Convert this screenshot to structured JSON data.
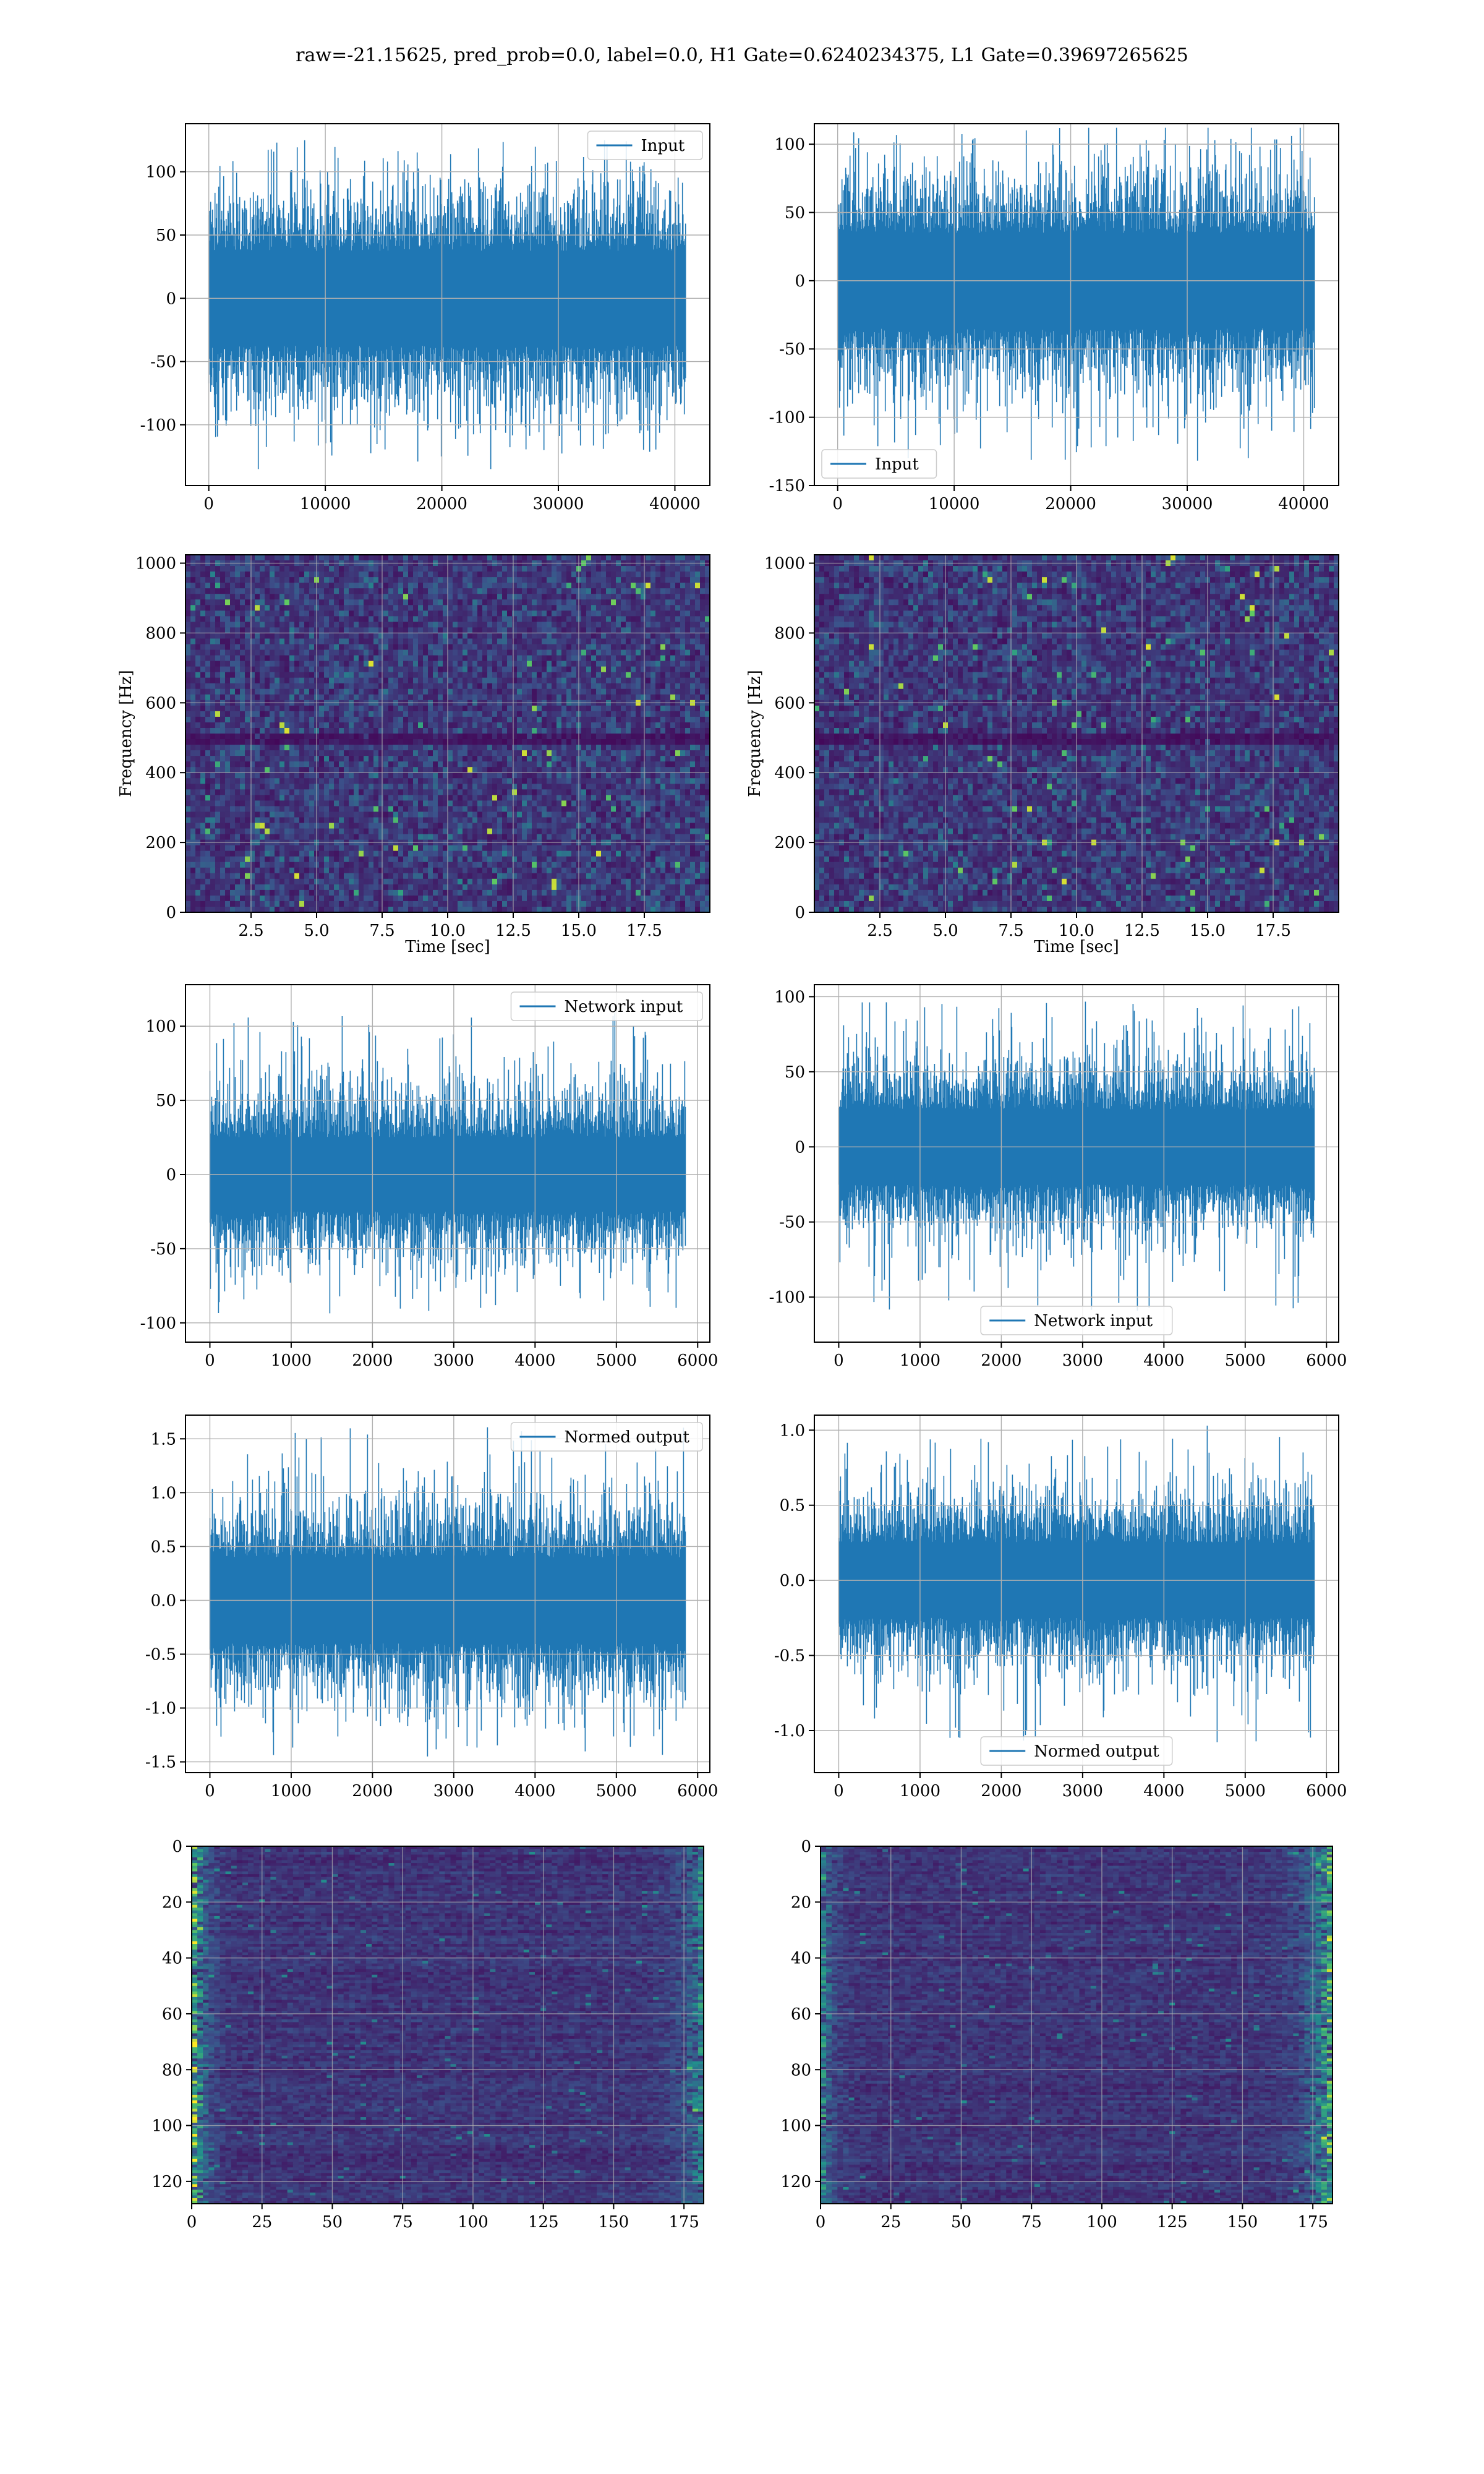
{
  "figure": {
    "title": "raw=-21.15625, pred_prob=0.0, label=0.0, H1 Gate=0.6240234375, L1 Gate=0.39697265625"
  },
  "colors": {
    "line": "#1f77b4",
    "grid": "#b0b0b0",
    "heatmap_background": "#3b0f6f",
    "viridis": [
      "#440154",
      "#3b528b",
      "#21918c",
      "#5ec962",
      "#fde725"
    ]
  },
  "chart_data": [
    {
      "id": "input-h1",
      "type": "line",
      "title": "",
      "xlabel": "",
      "ylabel": "",
      "series": [
        {
          "name": "Input",
          "x_range": [
            0,
            40960
          ],
          "envelope_typical": [
            -60,
            75
          ],
          "spike_range": [
            -135,
            125
          ]
        }
      ],
      "xlim": [
        -2000,
        43000
      ],
      "ylim": [
        -148,
        138
      ],
      "xticks": [
        0,
        10000,
        20000,
        30000,
        40000
      ],
      "yticks": [
        -100,
        -50,
        0,
        50,
        100
      ],
      "legend": "upper right",
      "grid": true
    },
    {
      "id": "input-l1",
      "type": "line",
      "title": "",
      "xlabel": "",
      "ylabel": "",
      "series": [
        {
          "name": "Input",
          "x_range": [
            0,
            40960
          ],
          "envelope_typical": [
            -60,
            70
          ],
          "spike_range": [
            -140,
            112
          ]
        }
      ],
      "xlim": [
        -2000,
        43000
      ],
      "ylim": [
        -150,
        115
      ],
      "xticks": [
        0,
        10000,
        20000,
        30000,
        40000
      ],
      "yticks": [
        -150,
        -100,
        -50,
        0,
        50,
        100
      ],
      "legend": "lower left",
      "grid": true
    },
    {
      "id": "spectrogram-h1",
      "type": "heatmap",
      "title": "",
      "xlabel": "Time [sec]",
      "ylabel": "Frequency [Hz]",
      "xlim": [
        0,
        20
      ],
      "ylim": [
        0,
        1024
      ],
      "xticks": [
        2.5,
        5.0,
        7.5,
        10.0,
        12.5,
        15.0,
        17.5
      ],
      "yticks": [
        0,
        200,
        400,
        600,
        800,
        1000
      ],
      "grid": true
    },
    {
      "id": "spectrogram-l1",
      "type": "heatmap",
      "title": "",
      "xlabel": "Time [sec]",
      "ylabel": "Frequency [Hz]",
      "xlim": [
        0,
        20
      ],
      "ylim": [
        0,
        1024
      ],
      "xticks": [
        2.5,
        5.0,
        7.5,
        10.0,
        12.5,
        15.0,
        17.5
      ],
      "yticks": [
        0,
        200,
        400,
        600,
        800,
        1000
      ],
      "grid": true
    },
    {
      "id": "network-input-h1",
      "type": "line",
      "title": "",
      "xlabel": "",
      "ylabel": "",
      "series": [
        {
          "name": "Network input",
          "x_range": [
            0,
            5850
          ],
          "envelope_typical": [
            -45,
            50
          ],
          "spike_range": [
            -100,
            118
          ]
        }
      ],
      "xlim": [
        -300,
        6150
      ],
      "ylim": [
        -113,
        128
      ],
      "xticks": [
        0,
        1000,
        2000,
        3000,
        4000,
        5000,
        6000
      ],
      "yticks": [
        -100,
        -50,
        0,
        50,
        100
      ],
      "legend": "upper right",
      "grid": true
    },
    {
      "id": "network-input-l1",
      "type": "line",
      "title": "",
      "xlabel": "",
      "ylabel": "",
      "series": [
        {
          "name": "Network input",
          "x_range": [
            0,
            5850
          ],
          "envelope_typical": [
            -45,
            50
          ],
          "spike_range": [
            -118,
            102
          ]
        }
      ],
      "xlim": [
        -300,
        6150
      ],
      "ylim": [
        -130,
        108
      ],
      "xticks": [
        0,
        1000,
        2000,
        3000,
        4000,
        5000,
        6000
      ],
      "yticks": [
        -100,
        -50,
        0,
        50,
        100
      ],
      "legend": "lower center",
      "grid": true
    },
    {
      "id": "normed-output-h1",
      "type": "line",
      "title": "",
      "xlabel": "",
      "ylabel": "",
      "series": [
        {
          "name": "Normed output",
          "x_range": [
            0,
            5850
          ],
          "envelope_typical": [
            -0.7,
            0.8
          ],
          "spike_range": [
            -1.45,
            1.72
          ]
        }
      ],
      "xlim": [
        -300,
        6150
      ],
      "ylim": [
        -1.6,
        1.72
      ],
      "xticks": [
        0,
        1000,
        2000,
        3000,
        4000,
        5000,
        6000
      ],
      "yticks": [
        -1.5,
        -1.0,
        -0.5,
        0.0,
        0.5,
        1.0,
        1.5
      ],
      "legend": "upper right",
      "grid": true
    },
    {
      "id": "normed-output-l1",
      "type": "line",
      "title": "",
      "xlabel": "",
      "ylabel": "",
      "series": [
        {
          "name": "Normed output",
          "x_range": [
            0,
            5850
          ],
          "envelope_typical": [
            -0.45,
            0.5
          ],
          "spike_range": [
            -1.18,
            1.03
          ]
        }
      ],
      "xlim": [
        -300,
        6150
      ],
      "ylim": [
        -1.28,
        1.1
      ],
      "xticks": [
        0,
        1000,
        2000,
        3000,
        4000,
        5000,
        6000
      ],
      "yticks": [
        -1.0,
        -0.5,
        0.0,
        0.5,
        1.0
      ],
      "legend": "lower center",
      "grid": true
    },
    {
      "id": "feature-map-h1",
      "type": "heatmap",
      "title": "",
      "xlabel": "",
      "ylabel": "",
      "shape": [
        128,
        182
      ],
      "xlim": [
        0,
        182
      ],
      "ylim": [
        128,
        0
      ],
      "xticks": [
        0,
        25,
        50,
        75,
        100,
        125,
        150,
        175
      ],
      "yticks": [
        0,
        20,
        40,
        60,
        80,
        100,
        120
      ],
      "grid": true
    },
    {
      "id": "feature-map-l1",
      "type": "heatmap",
      "title": "",
      "xlabel": "",
      "ylabel": "",
      "shape": [
        128,
        182
      ],
      "xlim": [
        0,
        182
      ],
      "ylim": [
        128,
        0
      ],
      "xticks": [
        0,
        25,
        50,
        75,
        100,
        125,
        150,
        175
      ],
      "yticks": [
        0,
        20,
        40,
        60,
        80,
        100,
        120
      ],
      "grid": true
    }
  ]
}
